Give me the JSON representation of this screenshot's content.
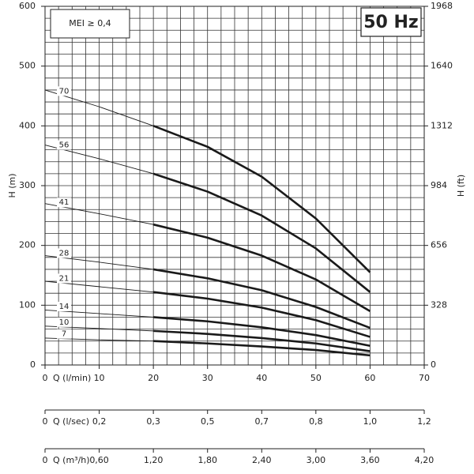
{
  "chart_data": {
    "type": "line",
    "badge": "MEI ≥ 0,4",
    "frequency": "50 Hz",
    "ylabel": "H (m)",
    "y2label": "H (ft)",
    "xlabel": "Q (l/min)",
    "x": [
      0,
      10,
      20,
      30,
      40,
      50,
      60
    ],
    "operating_xlim": [
      20,
      60
    ],
    "series": [
      {
        "name": "70",
        "color": "#1a1a1a",
        "values": [
          460,
          432,
          400,
          365,
          315,
          245,
          155
        ]
      },
      {
        "name": "56",
        "color": "#1a1a1a",
        "values": [
          368,
          345,
          320,
          290,
          250,
          195,
          122
        ]
      },
      {
        "name": "41",
        "color": "#1a1a1a",
        "values": [
          270,
          253,
          235,
          213,
          183,
          143,
          90
        ]
      },
      {
        "name": "28",
        "color": "#1a1a1a",
        "values": [
          183,
          172,
          160,
          145,
          125,
          97,
          62
        ]
      },
      {
        "name": "21",
        "color": "#1a1a1a",
        "values": [
          140,
          131,
          122,
          111,
          96,
          75,
          47
        ]
      },
      {
        "name": "14",
        "color": "#1a1a1a",
        "values": [
          92,
          86,
          80,
          73,
          63,
          50,
          32
        ]
      },
      {
        "name": "10",
        "color": "#1a1a1a",
        "values": [
          65,
          61,
          57,
          52,
          45,
          36,
          23
        ]
      },
      {
        "name": "7",
        "color": "#1a1a1a",
        "values": [
          45,
          42,
          40,
          36,
          31,
          25,
          16
        ]
      }
    ],
    "xlim": [
      0,
      70
    ],
    "xticks": [
      0,
      10,
      20,
      30,
      40,
      50,
      60,
      70
    ],
    "ylim": [
      0,
      600
    ],
    "yticks": [
      0,
      100,
      200,
      300,
      400,
      500,
      600
    ],
    "y2lim": [
      0,
      1968
    ],
    "y2ticks": [
      0,
      328,
      656,
      984,
      1312,
      1640,
      1968
    ],
    "x_minor_step": 2.5,
    "y_minor_step": 20,
    "grid": true,
    "secondary_x_axes": [
      {
        "label": "Q (l/sec)",
        "xlim": [
          0,
          1.1667
        ],
        "ticks": [
          0,
          {
            "value": 0.1667,
            "label": "0,2"
          },
          {
            "value": 0.3333,
            "label": "0,3"
          },
          {
            "value": 0.5,
            "label": "0,5"
          },
          {
            "value": 0.6667,
            "label": "0,7"
          },
          {
            "value": 0.8333,
            "label": "0,8"
          },
          {
            "value": 1.0,
            "label": "1,0"
          },
          {
            "value": 1.1667,
            "label": "1,2"
          }
        ]
      },
      {
        "label": "Q (m³/h)",
        "xlim": [
          0,
          4.2
        ],
        "ticks": [
          0,
          {
            "value": 0.6,
            "label": "0,60"
          },
          {
            "value": 1.2,
            "label": "1,20"
          },
          {
            "value": 1.8,
            "label": "1,80"
          },
          {
            "value": 2.4,
            "label": "2,40"
          },
          {
            "value": 3.0,
            "label": "3,00"
          },
          {
            "value": 3.6,
            "label": "3,60"
          },
          {
            "value": 4.2,
            "label": "4,20"
          }
        ]
      }
    ]
  }
}
